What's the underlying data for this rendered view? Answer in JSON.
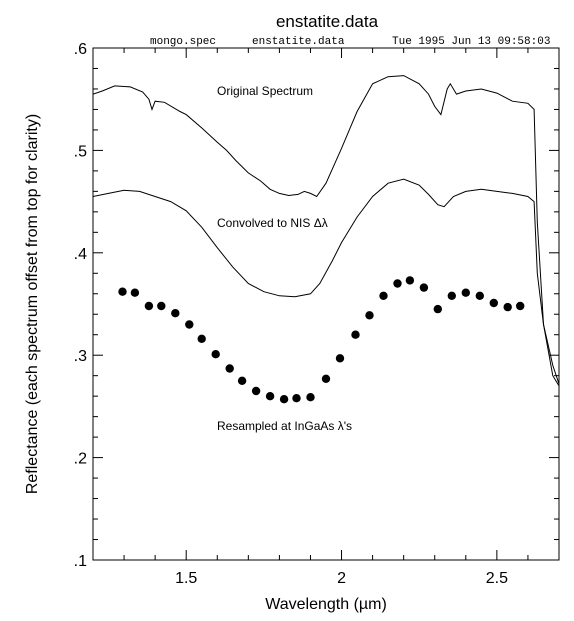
{
  "chart_data": {
    "type": "line",
    "title": "enstatite.data",
    "subtitle": {
      "macro": "mongo.spec",
      "file": "enstatite.data",
      "date": "Tue 1995 Jun 13 09:58:03"
    },
    "xlabel": "Wavelength (µm)",
    "ylabel": "Reflectance (each spectrum offset from top for clarity)",
    "xlim": [
      1.2,
      2.7
    ],
    "ylim": [
      0.1,
      0.6
    ],
    "xticks_major": [
      1.5,
      2,
      2.5
    ],
    "xtick_labels": [
      "1.5",
      "2",
      "2.5"
    ],
    "yticks_major": [
      0.1,
      0.2,
      0.3,
      0.4,
      0.5,
      0.6
    ],
    "ytick_labels": [
      ".1",
      ".2",
      ".3",
      ".4",
      ".5",
      ".6"
    ],
    "grid": false,
    "series": [
      {
        "name": "Original Spectrum",
        "style": "line",
        "x": [
          1.2,
          1.23,
          1.27,
          1.32,
          1.36,
          1.38,
          1.39,
          1.4,
          1.43,
          1.48,
          1.5,
          1.55,
          1.6,
          1.63,
          1.66,
          1.7,
          1.74,
          1.77,
          1.8,
          1.83,
          1.86,
          1.88,
          1.9,
          1.92,
          1.95,
          2.0,
          2.05,
          2.1,
          2.15,
          2.2,
          2.25,
          2.28,
          2.3,
          2.32,
          2.34,
          2.35,
          2.37,
          2.4,
          2.45,
          2.5,
          2.55,
          2.6,
          2.62,
          2.63,
          2.65,
          2.68,
          2.7
        ],
        "y": [
          0.555,
          0.558,
          0.563,
          0.562,
          0.557,
          0.55,
          0.54,
          0.548,
          0.547,
          0.538,
          0.535,
          0.522,
          0.508,
          0.5,
          0.49,
          0.478,
          0.47,
          0.462,
          0.458,
          0.456,
          0.457,
          0.46,
          0.458,
          0.455,
          0.468,
          0.502,
          0.538,
          0.565,
          0.572,
          0.573,
          0.565,
          0.555,
          0.543,
          0.535,
          0.56,
          0.565,
          0.555,
          0.558,
          0.56,
          0.556,
          0.548,
          0.546,
          0.54,
          0.43,
          0.33,
          0.28,
          0.27
        ]
      },
      {
        "name": "Convolved to NIS Δλ",
        "style": "line",
        "x": [
          1.2,
          1.25,
          1.3,
          1.35,
          1.4,
          1.45,
          1.5,
          1.55,
          1.6,
          1.65,
          1.7,
          1.75,
          1.8,
          1.85,
          1.9,
          1.93,
          1.97,
          2.0,
          2.05,
          2.1,
          2.15,
          2.2,
          2.25,
          2.28,
          2.31,
          2.33,
          2.36,
          2.4,
          2.45,
          2.5,
          2.55,
          2.6,
          2.62,
          2.63,
          2.65,
          2.68,
          2.7
        ],
        "y": [
          0.455,
          0.458,
          0.461,
          0.46,
          0.455,
          0.45,
          0.441,
          0.425,
          0.405,
          0.386,
          0.37,
          0.362,
          0.358,
          0.357,
          0.36,
          0.37,
          0.392,
          0.41,
          0.435,
          0.455,
          0.468,
          0.472,
          0.466,
          0.457,
          0.447,
          0.445,
          0.455,
          0.46,
          0.462,
          0.46,
          0.458,
          0.455,
          0.45,
          0.38,
          0.33,
          0.29,
          0.272
        ]
      },
      {
        "name": "Resampled at InGaAs λ's",
        "style": "markers",
        "x": [
          1.295,
          1.335,
          1.38,
          1.42,
          1.465,
          1.51,
          1.55,
          1.595,
          1.64,
          1.68,
          1.725,
          1.77,
          1.815,
          1.855,
          1.9,
          1.95,
          1.995,
          2.045,
          2.09,
          2.135,
          2.18,
          2.22,
          2.265,
          2.31,
          2.355,
          2.4,
          2.445,
          2.49,
          2.535,
          2.575
        ],
        "y": [
          0.362,
          0.361,
          0.348,
          0.348,
          0.341,
          0.33,
          0.316,
          0.301,
          0.287,
          0.275,
          0.265,
          0.26,
          0.257,
          0.258,
          0.259,
          0.277,
          0.297,
          0.32,
          0.339,
          0.358,
          0.37,
          0.373,
          0.366,
          0.345,
          0.358,
          0.361,
          0.358,
          0.351,
          0.347,
          0.348
        ]
      }
    ],
    "annotations": [
      "Original Spectrum",
      "Convolved to NIS Δλ",
      "Resampled at InGaAs λ's"
    ]
  }
}
